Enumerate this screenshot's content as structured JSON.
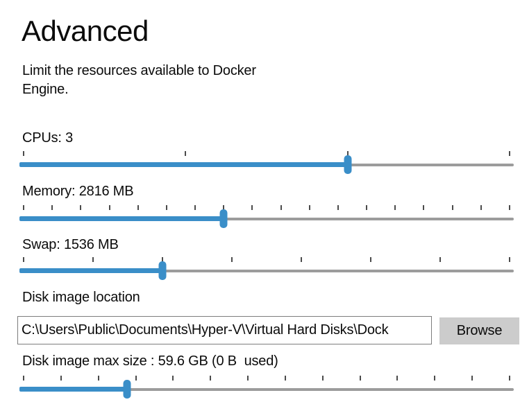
{
  "page": {
    "title": "Advanced",
    "description": "Limit the resources available to Docker Engine."
  },
  "colors": {
    "accent": "#3a8ec8",
    "track": "#9c9c9c",
    "tick": "#4b4b4b",
    "button_bg": "#cccccc"
  },
  "sliders": {
    "cpus": {
      "label": "CPUs: 3",
      "ticks": 4,
      "fill": 0.665
    },
    "memory": {
      "label": "Memory: 2816 MB",
      "ticks": 18,
      "fill": 0.413
    },
    "swap": {
      "label": "Swap: 1536 MB",
      "ticks": 8,
      "fill": 0.289
    },
    "disk": {
      "label": "Disk image max size : 59.6 GB (0 B  used)",
      "ticks": 14,
      "fill": 0.218
    }
  },
  "disk_location": {
    "label": "Disk image location",
    "value": "C:\\Users\\Public\\Documents\\Hyper-V\\Virtual Hard Disks\\Dock",
    "browse_label": "Browse"
  }
}
